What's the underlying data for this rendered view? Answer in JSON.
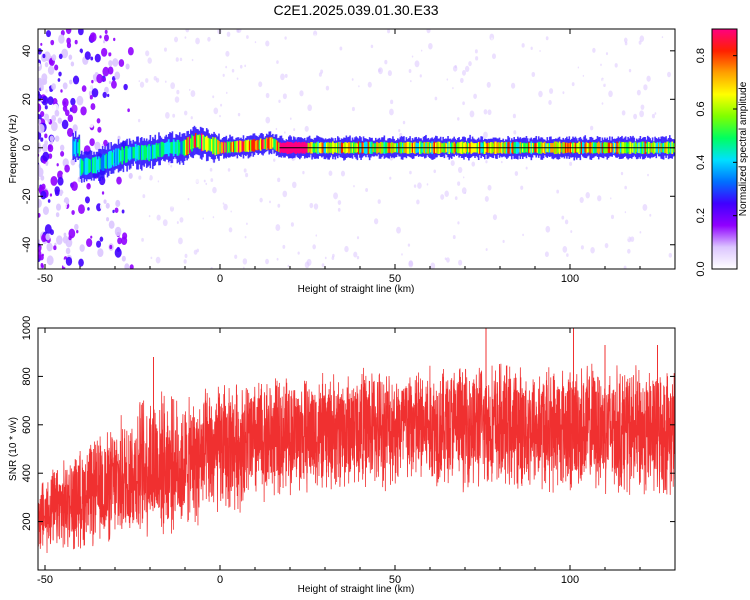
{
  "chart_data": [
    {
      "type": "heatmap",
      "title": "C2E1.2025.039.01.30.E33",
      "xlabel": "Height of straight line (km)",
      "ylabel": "Frequency (Hz)",
      "xlim": [
        -52,
        130
      ],
      "ylim": [
        -50,
        49
      ],
      "xticks": [
        -50,
        0,
        50,
        100
      ],
      "yticks": [
        -40,
        -20,
        0,
        20,
        40
      ],
      "grid": false,
      "colorbar": {
        "label": "Normalized spectral amplitude",
        "range": [
          0,
          0.9
        ],
        "ticks": [
          0.0,
          0.2,
          0.4,
          0.6,
          0.8
        ],
        "colors": [
          "#ffffff",
          "#dcc6ff",
          "#9000ff",
          "#4000ff",
          "#0070ff",
          "#00e0ff",
          "#00ff60",
          "#80ff00",
          "#ffff00",
          "#ffa000",
          "#ff2000",
          "#ff0080"
        ]
      },
      "ridge": {
        "description_points": [
          {
            "x": -40,
            "y": -8
          },
          {
            "x": -35,
            "y": -7
          },
          {
            "x": -30,
            "y": -4
          },
          {
            "x": -25,
            "y": -2
          },
          {
            "x": -20,
            "y": -2
          },
          {
            "x": -15,
            "y": 0
          },
          {
            "x": -10,
            "y": 0
          },
          {
            "x": -7,
            "y": 3
          },
          {
            "x": 0,
            "y": 0
          },
          {
            "x": 10,
            "y": 1
          },
          {
            "x": 15,
            "y": 2
          },
          {
            "x": 17,
            "y": 0
          },
          {
            "x": 130,
            "y": 0
          }
        ]
      }
    },
    {
      "type": "line",
      "xlabel": "Height of straight line (km)",
      "ylabel": "SNR (10 * v/v)",
      "xlim": [
        -52,
        130
      ],
      "ylim": [
        0,
        1000
      ],
      "xticks": [
        -50,
        0,
        50,
        100
      ],
      "yticks": [
        200,
        400,
        600,
        800,
        1000
      ],
      "grid": false,
      "series_color": "#f03030",
      "envelope": [
        {
          "x": -52,
          "low": 50,
          "high": 380
        },
        {
          "x": -40,
          "low": 70,
          "high": 520
        },
        {
          "x": -30,
          "low": 90,
          "high": 620
        },
        {
          "x": -20,
          "low": 110,
          "high": 780
        },
        {
          "x": -10,
          "low": 140,
          "high": 720
        },
        {
          "x": 0,
          "low": 200,
          "high": 800
        },
        {
          "x": 10,
          "low": 250,
          "high": 820
        },
        {
          "x": 20,
          "low": 300,
          "high": 820
        },
        {
          "x": 30,
          "low": 300,
          "high": 830
        },
        {
          "x": 40,
          "low": 320,
          "high": 860
        },
        {
          "x": 50,
          "low": 320,
          "high": 860
        },
        {
          "x": 60,
          "low": 320,
          "high": 870
        },
        {
          "x": 70,
          "low": 320,
          "high": 880
        },
        {
          "x": 80,
          "low": 310,
          "high": 880
        },
        {
          "x": 90,
          "low": 310,
          "high": 860
        },
        {
          "x": 100,
          "low": 300,
          "high": 880
        },
        {
          "x": 110,
          "low": 300,
          "high": 880
        },
        {
          "x": 120,
          "low": 280,
          "high": 860
        },
        {
          "x": 130,
          "low": 280,
          "high": 860
        }
      ],
      "peaks": [
        {
          "x": -19,
          "y": 880
        },
        {
          "x": 76,
          "y": 1000
        },
        {
          "x": 101,
          "y": 1000
        },
        {
          "x": 110,
          "y": 930
        },
        {
          "x": 125,
          "y": 930
        }
      ]
    }
  ]
}
